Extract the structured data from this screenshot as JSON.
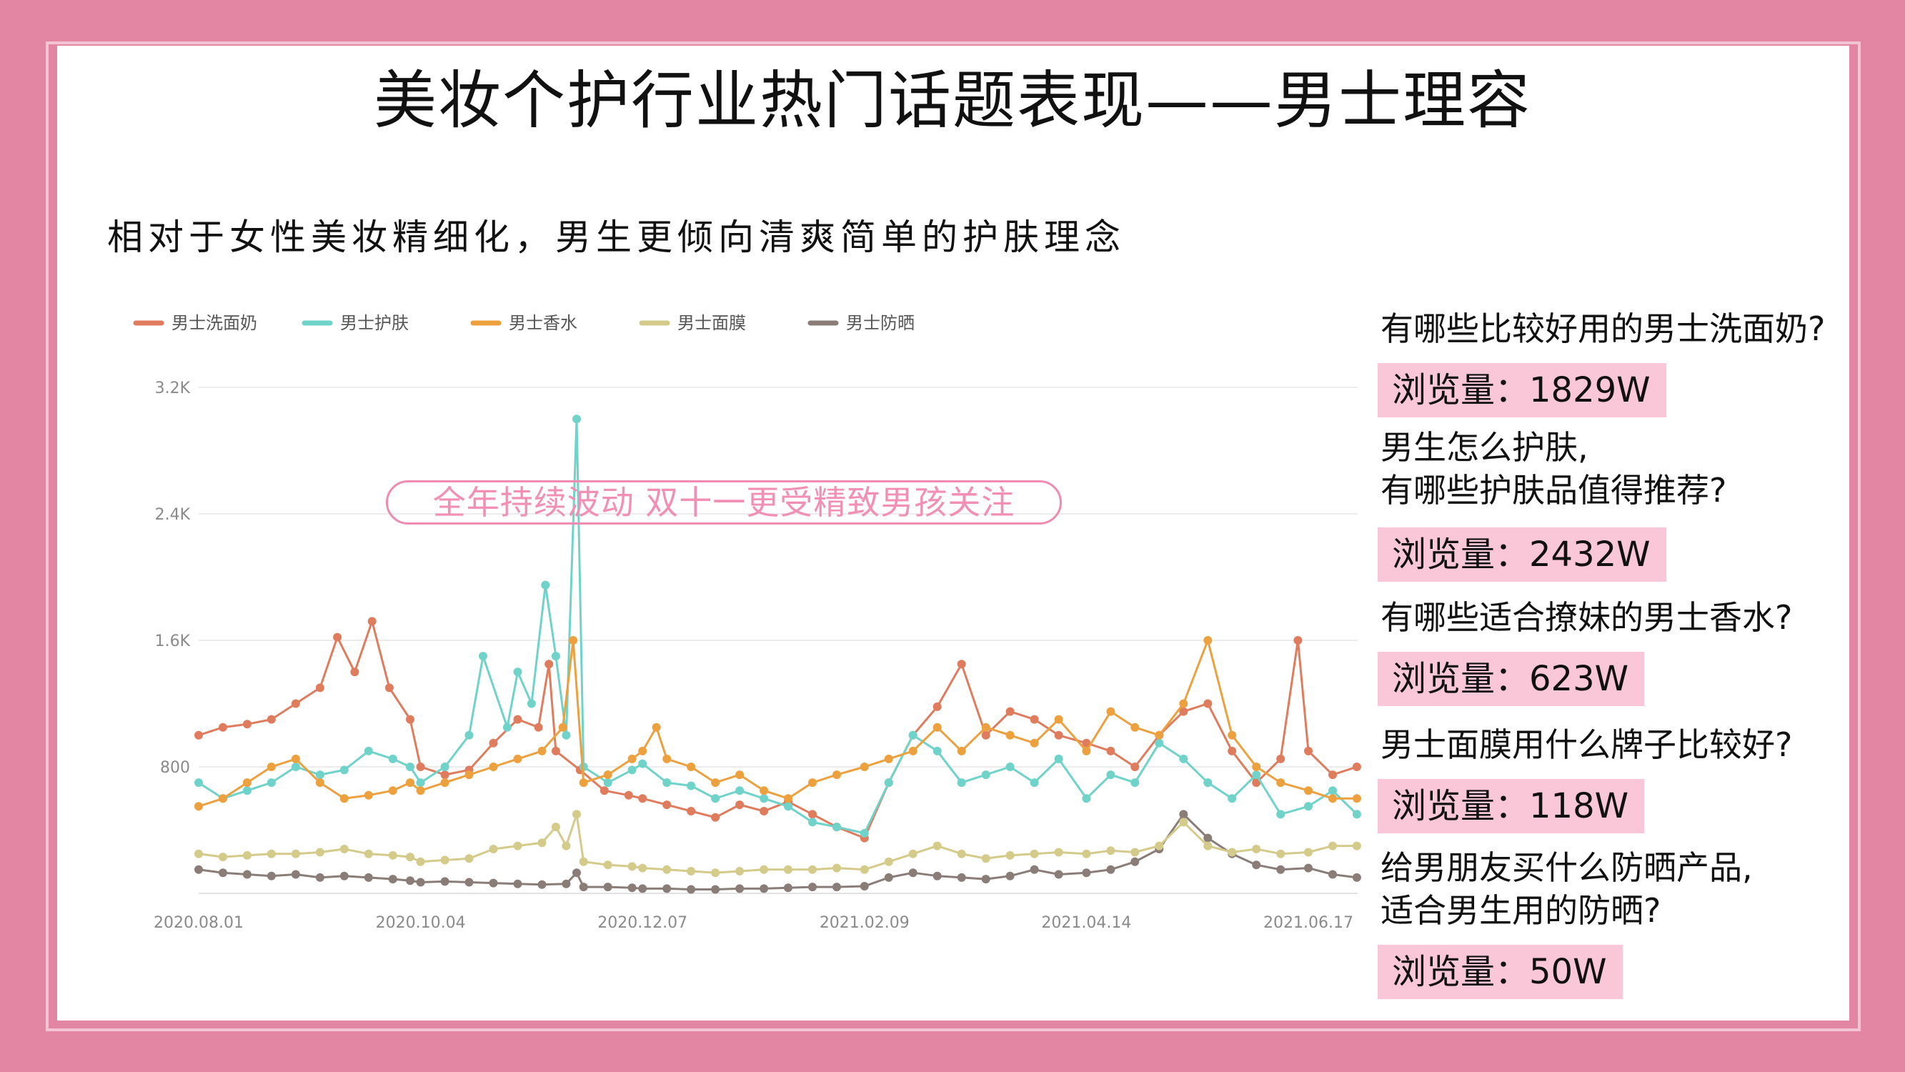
{
  "title": "美妆个护行业热门话题表现——男士理容",
  "subtitle": "相对于女性美妆精细化，男生更倾向清爽简单的护肤理念",
  "annotation": "全年持续波动 双十一更受精致男孩关注",
  "qa": [
    {
      "question": "有哪些比较好用的男士洗面奶?",
      "views": "浏览量：1829W"
    },
    {
      "question": "男生怎么护肤,\n有哪些护肤品值得推荐?",
      "views": "浏览量：2432W"
    },
    {
      "question": "有哪些适合撩妹的男士香水?",
      "views": "浏览量：623W"
    },
    {
      "question": "男士面膜用什么牌子比较好?",
      "views": "浏览量：118W"
    },
    {
      "question": "给男朋友买什么防晒产品,\n适合男生用的防晒?",
      "views": "浏览量：50W"
    }
  ],
  "colors": {
    "background": "#e386a4",
    "accent": "#f28fb5",
    "views_bg": "#f9c7d7"
  },
  "chart_data": {
    "type": "line",
    "x_labels": [
      "2020.08.01",
      "2020.10.04",
      "2020.12.07",
      "2021.02.09",
      "2021.04.14",
      "2021.06.17"
    ],
    "x_range": [
      "2020.08.01",
      "2021.07.01"
    ],
    "y_ticks": [
      "800",
      "1.6K",
      "2.4K",
      "3.2K"
    ],
    "ylim": [
      0,
      3200
    ],
    "grid": true,
    "legend_position": "top-left",
    "series": [
      {
        "name": "男士洗面奶",
        "color": "#e07c5e",
        "points": [
          [
            "2020-08-01",
            1000
          ],
          [
            "2020-08-08",
            1050
          ],
          [
            "2020-08-15",
            1070
          ],
          [
            "2020-08-22",
            1100
          ],
          [
            "2020-08-29",
            1200
          ],
          [
            "2020-09-05",
            1300
          ],
          [
            "2020-09-10",
            1620
          ],
          [
            "2020-09-15",
            1400
          ],
          [
            "2020-09-20",
            1720
          ],
          [
            "2020-09-25",
            1300
          ],
          [
            "2020-10-01",
            1100
          ],
          [
            "2020-10-04",
            800
          ],
          [
            "2020-10-11",
            750
          ],
          [
            "2020-10-18",
            780
          ],
          [
            "2020-10-25",
            950
          ],
          [
            "2020-11-01",
            1100
          ],
          [
            "2020-11-07",
            1050
          ],
          [
            "2020-11-10",
            1450
          ],
          [
            "2020-11-12",
            900
          ],
          [
            "2020-11-19",
            780
          ],
          [
            "2020-11-26",
            650
          ],
          [
            "2020-12-03",
            620
          ],
          [
            "2020-12-07",
            600
          ],
          [
            "2020-12-14",
            560
          ],
          [
            "2020-12-21",
            520
          ],
          [
            "2020-12-28",
            480
          ],
          [
            "2021-01-04",
            560
          ],
          [
            "2021-01-11",
            520
          ],
          [
            "2021-01-18",
            580
          ],
          [
            "2021-01-25",
            500
          ],
          [
            "2021-02-01",
            420
          ],
          [
            "2021-02-09",
            350
          ],
          [
            "2021-02-16",
            700
          ],
          [
            "2021-02-23",
            1000
          ],
          [
            "2021-03-02",
            1180
          ],
          [
            "2021-03-09",
            1450
          ],
          [
            "2021-03-16",
            1000
          ],
          [
            "2021-03-23",
            1150
          ],
          [
            "2021-03-30",
            1100
          ],
          [
            "2021-04-06",
            1000
          ],
          [
            "2021-04-14",
            950
          ],
          [
            "2021-04-21",
            900
          ],
          [
            "2021-04-28",
            800
          ],
          [
            "2021-05-05",
            1000
          ],
          [
            "2021-05-12",
            1150
          ],
          [
            "2021-05-19",
            1200
          ],
          [
            "2021-05-26",
            900
          ],
          [
            "2021-06-02",
            700
          ],
          [
            "2021-06-09",
            850
          ],
          [
            "2021-06-14",
            1600
          ],
          [
            "2021-06-17",
            900
          ],
          [
            "2021-06-24",
            750
          ],
          [
            "2021-07-01",
            800
          ]
        ]
      },
      {
        "name": "男士护肤",
        "color": "#6fd3c9",
        "points": [
          [
            "2020-08-01",
            700
          ],
          [
            "2020-08-08",
            600
          ],
          [
            "2020-08-15",
            650
          ],
          [
            "2020-08-22",
            700
          ],
          [
            "2020-08-29",
            800
          ],
          [
            "2020-09-05",
            750
          ],
          [
            "2020-09-12",
            780
          ],
          [
            "2020-09-19",
            900
          ],
          [
            "2020-09-26",
            850
          ],
          [
            "2020-10-01",
            800
          ],
          [
            "2020-10-04",
            700
          ],
          [
            "2020-10-11",
            800
          ],
          [
            "2020-10-18",
            1000
          ],
          [
            "2020-10-22",
            1500
          ],
          [
            "2020-10-29",
            1050
          ],
          [
            "2020-11-01",
            1400
          ],
          [
            "2020-11-05",
            1200
          ],
          [
            "2020-11-09",
            1950
          ],
          [
            "2020-11-12",
            1500
          ],
          [
            "2020-11-15",
            1000
          ],
          [
            "2020-11-18",
            3000
          ],
          [
            "2020-11-20",
            800
          ],
          [
            "2020-11-27",
            700
          ],
          [
            "2020-12-04",
            780
          ],
          [
            "2020-12-07",
            820
          ],
          [
            "2020-12-14",
            700
          ],
          [
            "2020-12-21",
            680
          ],
          [
            "2020-12-28",
            600
          ],
          [
            "2021-01-04",
            650
          ],
          [
            "2021-01-11",
            600
          ],
          [
            "2021-01-18",
            550
          ],
          [
            "2021-01-25",
            450
          ],
          [
            "2021-02-01",
            420
          ],
          [
            "2021-02-09",
            380
          ],
          [
            "2021-02-16",
            700
          ],
          [
            "2021-02-23",
            1000
          ],
          [
            "2021-03-02",
            900
          ],
          [
            "2021-03-09",
            700
          ],
          [
            "2021-03-16",
            750
          ],
          [
            "2021-03-23",
            800
          ],
          [
            "2021-03-30",
            700
          ],
          [
            "2021-04-06",
            850
          ],
          [
            "2021-04-14",
            600
          ],
          [
            "2021-04-21",
            750
          ],
          [
            "2021-04-28",
            700
          ],
          [
            "2021-05-05",
            950
          ],
          [
            "2021-05-12",
            850
          ],
          [
            "2021-05-19",
            700
          ],
          [
            "2021-05-26",
            600
          ],
          [
            "2021-06-02",
            750
          ],
          [
            "2021-06-09",
            500
          ],
          [
            "2021-06-17",
            550
          ],
          [
            "2021-06-24",
            650
          ],
          [
            "2021-07-01",
            500
          ]
        ]
      },
      {
        "name": "男士香水",
        "color": "#eda13e",
        "points": [
          [
            "2020-08-01",
            550
          ],
          [
            "2020-08-08",
            600
          ],
          [
            "2020-08-15",
            700
          ],
          [
            "2020-08-22",
            800
          ],
          [
            "2020-08-29",
            850
          ],
          [
            "2020-09-05",
            700
          ],
          [
            "2020-09-12",
            600
          ],
          [
            "2020-09-19",
            620
          ],
          [
            "2020-09-26",
            650
          ],
          [
            "2020-10-01",
            700
          ],
          [
            "2020-10-04",
            650
          ],
          [
            "2020-10-11",
            700
          ],
          [
            "2020-10-18",
            750
          ],
          [
            "2020-10-25",
            800
          ],
          [
            "2020-11-01",
            850
          ],
          [
            "2020-11-08",
            900
          ],
          [
            "2020-11-14",
            1050
          ],
          [
            "2020-11-17",
            1600
          ],
          [
            "2020-11-20",
            700
          ],
          [
            "2020-11-27",
            750
          ],
          [
            "2020-12-04",
            850
          ],
          [
            "2020-12-07",
            900
          ],
          [
            "2020-12-11",
            1050
          ],
          [
            "2020-12-14",
            850
          ],
          [
            "2020-12-21",
            800
          ],
          [
            "2020-12-28",
            700
          ],
          [
            "2021-01-04",
            750
          ],
          [
            "2021-01-11",
            650
          ],
          [
            "2021-01-18",
            600
          ],
          [
            "2021-01-25",
            700
          ],
          [
            "2021-02-01",
            750
          ],
          [
            "2021-02-09",
            800
          ],
          [
            "2021-02-16",
            850
          ],
          [
            "2021-02-23",
            900
          ],
          [
            "2021-03-02",
            1050
          ],
          [
            "2021-03-09",
            900
          ],
          [
            "2021-03-16",
            1050
          ],
          [
            "2021-03-23",
            1000
          ],
          [
            "2021-03-30",
            950
          ],
          [
            "2021-04-06",
            1100
          ],
          [
            "2021-04-14",
            900
          ],
          [
            "2021-04-21",
            1150
          ],
          [
            "2021-04-28",
            1050
          ],
          [
            "2021-05-05",
            1000
          ],
          [
            "2021-05-12",
            1200
          ],
          [
            "2021-05-19",
            1600
          ],
          [
            "2021-05-26",
            1000
          ],
          [
            "2021-06-02",
            800
          ],
          [
            "2021-06-09",
            700
          ],
          [
            "2021-06-17",
            650
          ],
          [
            "2021-06-24",
            600
          ],
          [
            "2021-07-01",
            600
          ]
        ]
      },
      {
        "name": "男士面膜",
        "color": "#d4cb8a",
        "points": [
          [
            "2020-08-01",
            250
          ],
          [
            "2020-08-08",
            230
          ],
          [
            "2020-08-15",
            240
          ],
          [
            "2020-08-22",
            250
          ],
          [
            "2020-08-29",
            250
          ],
          [
            "2020-09-05",
            260
          ],
          [
            "2020-09-12",
            280
          ],
          [
            "2020-09-19",
            250
          ],
          [
            "2020-09-26",
            240
          ],
          [
            "2020-10-01",
            230
          ],
          [
            "2020-10-04",
            200
          ],
          [
            "2020-10-11",
            210
          ],
          [
            "2020-10-18",
            220
          ],
          [
            "2020-10-25",
            280
          ],
          [
            "2020-11-01",
            300
          ],
          [
            "2020-11-08",
            320
          ],
          [
            "2020-11-12",
            420
          ],
          [
            "2020-11-15",
            300
          ],
          [
            "2020-11-18",
            500
          ],
          [
            "2020-11-20",
            200
          ],
          [
            "2020-11-27",
            180
          ],
          [
            "2020-12-04",
            170
          ],
          [
            "2020-12-07",
            160
          ],
          [
            "2020-12-14",
            150
          ],
          [
            "2020-12-21",
            140
          ],
          [
            "2020-12-28",
            130
          ],
          [
            "2021-01-04",
            140
          ],
          [
            "2021-01-11",
            150
          ],
          [
            "2021-01-18",
            150
          ],
          [
            "2021-01-25",
            150
          ],
          [
            "2021-02-01",
            160
          ],
          [
            "2021-02-09",
            150
          ],
          [
            "2021-02-16",
            200
          ],
          [
            "2021-02-23",
            250
          ],
          [
            "2021-03-02",
            300
          ],
          [
            "2021-03-09",
            250
          ],
          [
            "2021-03-16",
            220
          ],
          [
            "2021-03-23",
            240
          ],
          [
            "2021-03-30",
            250
          ],
          [
            "2021-04-06",
            260
          ],
          [
            "2021-04-14",
            250
          ],
          [
            "2021-04-21",
            270
          ],
          [
            "2021-04-28",
            260
          ],
          [
            "2021-05-05",
            300
          ],
          [
            "2021-05-12",
            450
          ],
          [
            "2021-05-19",
            300
          ],
          [
            "2021-05-26",
            260
          ],
          [
            "2021-06-02",
            280
          ],
          [
            "2021-06-09",
            250
          ],
          [
            "2021-06-17",
            260
          ],
          [
            "2021-06-24",
            300
          ],
          [
            "2021-07-01",
            300
          ]
        ]
      },
      {
        "name": "男士防晒",
        "color": "#8a7d78",
        "points": [
          [
            "2020-08-01",
            150
          ],
          [
            "2020-08-08",
            130
          ],
          [
            "2020-08-15",
            120
          ],
          [
            "2020-08-22",
            110
          ],
          [
            "2020-08-29",
            120
          ],
          [
            "2020-09-05",
            100
          ],
          [
            "2020-09-12",
            110
          ],
          [
            "2020-09-19",
            100
          ],
          [
            "2020-09-26",
            90
          ],
          [
            "2020-10-01",
            80
          ],
          [
            "2020-10-04",
            70
          ],
          [
            "2020-10-11",
            75
          ],
          [
            "2020-10-18",
            70
          ],
          [
            "2020-10-25",
            65
          ],
          [
            "2020-11-01",
            60
          ],
          [
            "2020-11-08",
            55
          ],
          [
            "2020-11-15",
            60
          ],
          [
            "2020-11-18",
            130
          ],
          [
            "2020-11-20",
            40
          ],
          [
            "2020-11-27",
            40
          ],
          [
            "2020-12-04",
            35
          ],
          [
            "2020-12-07",
            30
          ],
          [
            "2020-12-14",
            30
          ],
          [
            "2020-12-21",
            25
          ],
          [
            "2020-12-28",
            25
          ],
          [
            "2021-01-04",
            30
          ],
          [
            "2021-01-11",
            30
          ],
          [
            "2021-01-18",
            35
          ],
          [
            "2021-01-25",
            40
          ],
          [
            "2021-02-01",
            40
          ],
          [
            "2021-02-09",
            45
          ],
          [
            "2021-02-16",
            100
          ],
          [
            "2021-02-23",
            130
          ],
          [
            "2021-03-02",
            110
          ],
          [
            "2021-03-09",
            100
          ],
          [
            "2021-03-16",
            90
          ],
          [
            "2021-03-23",
            110
          ],
          [
            "2021-03-30",
            150
          ],
          [
            "2021-04-06",
            120
          ],
          [
            "2021-04-14",
            130
          ],
          [
            "2021-04-21",
            150
          ],
          [
            "2021-04-28",
            200
          ],
          [
            "2021-05-05",
            280
          ],
          [
            "2021-05-12",
            500
          ],
          [
            "2021-05-19",
            350
          ],
          [
            "2021-05-26",
            250
          ],
          [
            "2021-06-02",
            180
          ],
          [
            "2021-06-09",
            150
          ],
          [
            "2021-06-17",
            160
          ],
          [
            "2021-06-24",
            120
          ],
          [
            "2021-07-01",
            100
          ]
        ]
      }
    ]
  }
}
